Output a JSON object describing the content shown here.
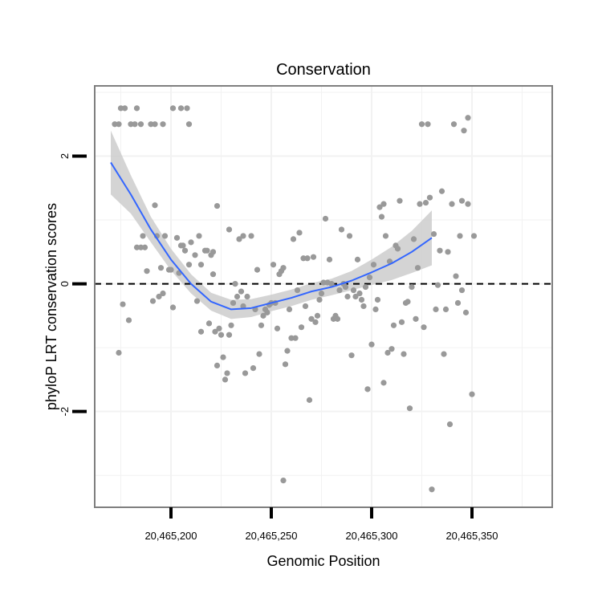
{
  "chart_data": {
    "type": "scatter",
    "title": "Conservation",
    "xlabel": "Genomic Position",
    "ylabel": "phyloP LRT conservation scores",
    "xlim": [
      20465162,
      20465390
    ],
    "ylim": [
      -3.5,
      3.1
    ],
    "x_ticks": [
      {
        "value": 20465200,
        "label": "20,465,200"
      },
      {
        "value": 20465250,
        "label": "20,465,250"
      },
      {
        "value": 20465300,
        "label": "20,465,300"
      },
      {
        "value": 20465350,
        "label": "20,465,350"
      }
    ],
    "y_ticks": [
      {
        "value": -2,
        "label": "-2"
      },
      {
        "value": 0,
        "label": "0"
      },
      {
        "value": 2,
        "label": "2"
      }
    ],
    "x_minor_gridlines": [
      20465175,
      20465225,
      20465275,
      20465325,
      20465375
    ],
    "y_minor_gridlines": [
      -3,
      -1,
      1,
      3
    ],
    "reference_line": {
      "y": 0,
      "style": "dashed"
    },
    "colors": {
      "points": "#999999",
      "smooth_line": "#3366ff",
      "ribbon": "#cccccc",
      "panel_border": "#7f7f7f",
      "grid": "#f2f2f2"
    },
    "series": [
      {
        "name": "phyloP scores",
        "points": [
          [
            20465172,
            2.5
          ],
          [
            20465174,
            2.5
          ],
          [
            20465175,
            2.75
          ],
          [
            20465177,
            2.75
          ],
          [
            20465180,
            2.5
          ],
          [
            20465182,
            2.5
          ],
          [
            20465183,
            2.75
          ],
          [
            20465185,
            2.5
          ],
          [
            20465190,
            2.5
          ],
          [
            20465192,
            2.5
          ],
          [
            20465196,
            2.5
          ],
          [
            20465201,
            2.75
          ],
          [
            20465205,
            2.75
          ],
          [
            20465208,
            2.75
          ],
          [
            20465209,
            2.5
          ],
          [
            20465174,
            -1.08
          ],
          [
            20465176,
            -0.32
          ],
          [
            20465179,
            -0.57
          ],
          [
            20465183,
            0.57
          ],
          [
            20465185,
            0.57
          ],
          [
            20465186,
            0.75
          ],
          [
            20465187,
            0.57
          ],
          [
            20465188,
            0.2
          ],
          [
            20465191,
            -0.27
          ],
          [
            20465192,
            1.23
          ],
          [
            20465193,
            0.75
          ],
          [
            20465194,
            -0.2
          ],
          [
            20465195,
            0.25
          ],
          [
            20465196,
            -0.15
          ],
          [
            20465197,
            0.75
          ],
          [
            20465199,
            0.22
          ],
          [
            20465200,
            0.22
          ],
          [
            20465201,
            -0.37
          ],
          [
            20465203,
            0.72
          ],
          [
            20465204,
            0.17
          ],
          [
            20465205,
            0.6
          ],
          [
            20465206,
            0.6
          ],
          [
            20465207,
            0.52
          ],
          [
            20465209,
            0.3
          ],
          [
            20465210,
            0.65
          ],
          [
            20465212,
            0.45
          ],
          [
            20465213,
            -0.27
          ],
          [
            20465214,
            0.75
          ],
          [
            20465215,
            -0.75
          ],
          [
            20465215,
            0.3
          ],
          [
            20465217,
            0.52
          ],
          [
            20465218,
            0.52
          ],
          [
            20465219,
            -0.62
          ],
          [
            20465220,
            0.45
          ],
          [
            20465221,
            0.15
          ],
          [
            20465221,
            0.5
          ],
          [
            20465222,
            -0.75
          ],
          [
            20465223,
            -1.28
          ],
          [
            20465223,
            1.22
          ],
          [
            20465224,
            -0.7
          ],
          [
            20465225,
            -0.8
          ],
          [
            20465226,
            -1.15
          ],
          [
            20465227,
            -1.5
          ],
          [
            20465228,
            -1.4
          ],
          [
            20465229,
            0.85
          ],
          [
            20465229,
            -0.8
          ],
          [
            20465230,
            -0.65
          ],
          [
            20465231,
            -0.3
          ],
          [
            20465232,
            0.0
          ],
          [
            20465233,
            -0.2
          ],
          [
            20465234,
            0.7
          ],
          [
            20465235,
            -0.12
          ],
          [
            20465236,
            0.75
          ],
          [
            20465236,
            -0.35
          ],
          [
            20465237,
            -1.4
          ],
          [
            20465238,
            -0.2
          ],
          [
            20465240,
            0.75
          ],
          [
            20465241,
            -1.32
          ],
          [
            20465242,
            -0.4
          ],
          [
            20465243,
            0.22
          ],
          [
            20465244,
            -1.1
          ],
          [
            20465245,
            -0.65
          ],
          [
            20465246,
            -0.5
          ],
          [
            20465247,
            -0.4
          ],
          [
            20465248,
            -0.45
          ],
          [
            20465249,
            -0.33
          ],
          [
            20465250,
            -0.3
          ],
          [
            20465251,
            0.3
          ],
          [
            20465252,
            -0.3
          ],
          [
            20465253,
            -0.7
          ],
          [
            20465254,
            0.15
          ],
          [
            20465255,
            0.2
          ],
          [
            20465256,
            0.25
          ],
          [
            20465256,
            -3.08
          ],
          [
            20465257,
            -1.26
          ],
          [
            20465258,
            -1.05
          ],
          [
            20465259,
            -0.4
          ],
          [
            20465260,
            -0.85
          ],
          [
            20465261,
            0.7
          ],
          [
            20465262,
            -0.85
          ],
          [
            20465263,
            -0.1
          ],
          [
            20465264,
            0.8
          ],
          [
            20465265,
            -0.68
          ],
          [
            20465266,
            0.4
          ],
          [
            20465267,
            -0.35
          ],
          [
            20465268,
            0.4
          ],
          [
            20465269,
            -1.82
          ],
          [
            20465270,
            -0.55
          ],
          [
            20465271,
            0.42
          ],
          [
            20465272,
            -0.6
          ],
          [
            20465273,
            -0.5
          ],
          [
            20465274,
            -0.25
          ],
          [
            20465275,
            -0.15
          ],
          [
            20465276,
            0.02
          ],
          [
            20465277,
            1.02
          ],
          [
            20465278,
            0.02
          ],
          [
            20465279,
            0.38
          ],
          [
            20465280,
            0.0
          ],
          [
            20465281,
            -0.55
          ],
          [
            20465282,
            -0.5
          ],
          [
            20465283,
            -0.55
          ],
          [
            20465284,
            -0.1
          ],
          [
            20465285,
            0.85
          ],
          [
            20465286,
            0.0
          ],
          [
            20465287,
            -0.05
          ],
          [
            20465288,
            -0.2
          ],
          [
            20465289,
            0.75
          ],
          [
            20465290,
            -1.12
          ],
          [
            20465291,
            -0.1
          ],
          [
            20465292,
            -0.2
          ],
          [
            20465293,
            0.38
          ],
          [
            20465294,
            -0.15
          ],
          [
            20465295,
            -0.25
          ],
          [
            20465296,
            -0.35
          ],
          [
            20465297,
            -0.05
          ],
          [
            20465298,
            -1.65
          ],
          [
            20465299,
            0.1
          ],
          [
            20465300,
            -0.95
          ],
          [
            20465301,
            0.3
          ],
          [
            20465302,
            -0.4
          ],
          [
            20465303,
            -0.25
          ],
          [
            20465304,
            1.2
          ],
          [
            20465305,
            1.05
          ],
          [
            20465306,
            1.25
          ],
          [
            20465306,
            -1.55
          ],
          [
            20465307,
            0.75
          ],
          [
            20465308,
            -1.08
          ],
          [
            20465309,
            0.35
          ],
          [
            20465310,
            -1.02
          ],
          [
            20465311,
            -0.65
          ],
          [
            20465312,
            0.6
          ],
          [
            20465313,
            0.55
          ],
          [
            20465314,
            1.3
          ],
          [
            20465315,
            -0.6
          ],
          [
            20465316,
            -1.1
          ],
          [
            20465317,
            -0.3
          ],
          [
            20465318,
            -0.28
          ],
          [
            20465319,
            -1.95
          ],
          [
            20465320,
            -0.05
          ],
          [
            20465321,
            0.7
          ],
          [
            20465322,
            -0.55
          ],
          [
            20465323,
            0.25
          ],
          [
            20465324,
            1.25
          ],
          [
            20465325,
            2.5
          ],
          [
            20465326,
            -0.68
          ],
          [
            20465327,
            1.27
          ],
          [
            20465328,
            2.5
          ],
          [
            20465329,
            1.35
          ],
          [
            20465330,
            -3.22
          ],
          [
            20465331,
            0.78
          ],
          [
            20465332,
            -0.4
          ],
          [
            20465333,
            -0.02
          ],
          [
            20465334,
            0.52
          ],
          [
            20465335,
            1.45
          ],
          [
            20465336,
            -1.1
          ],
          [
            20465337,
            -0.4
          ],
          [
            20465338,
            0.5
          ],
          [
            20465339,
            -2.2
          ],
          [
            20465340,
            1.25
          ],
          [
            20465341,
            2.5
          ],
          [
            20465342,
            0.12
          ],
          [
            20465343,
            -0.3
          ],
          [
            20465344,
            0.75
          ],
          [
            20465345,
            1.3
          ],
          [
            20465345,
            -0.1
          ],
          [
            20465346,
            2.4
          ],
          [
            20465347,
            -0.45
          ],
          [
            20465348,
            2.6
          ],
          [
            20465348,
            1.25
          ],
          [
            20465350,
            -1.73
          ],
          [
            20465351,
            0.75
          ]
        ]
      }
    ],
    "smooth": {
      "name": "loess fit",
      "points": [
        [
          20465170,
          1.9
        ],
        [
          20465180,
          1.4
        ],
        [
          20465190,
          0.85
        ],
        [
          20465200,
          0.38
        ],
        [
          20465210,
          0.0
        ],
        [
          20465220,
          -0.28
        ],
        [
          20465230,
          -0.4
        ],
        [
          20465240,
          -0.38
        ],
        [
          20465250,
          -0.3
        ],
        [
          20465260,
          -0.22
        ],
        [
          20465270,
          -0.12
        ],
        [
          20465280,
          -0.05
        ],
        [
          20465290,
          0.05
        ],
        [
          20465300,
          0.18
        ],
        [
          20465310,
          0.32
        ],
        [
          20465320,
          0.5
        ],
        [
          20465330,
          0.72
        ]
      ],
      "ci_upper": [
        2.4,
        1.7,
        1.05,
        0.55,
        0.15,
        -0.14,
        -0.25,
        -0.24,
        -0.17,
        -0.09,
        0.01,
        0.08,
        0.2,
        0.38,
        0.58,
        0.83,
        1.15
      ],
      "ci_lower": [
        1.4,
        1.1,
        0.65,
        0.21,
        -0.15,
        -0.42,
        -0.55,
        -0.52,
        -0.43,
        -0.35,
        -0.25,
        -0.18,
        -0.1,
        -0.02,
        0.06,
        0.17,
        0.29
      ]
    }
  }
}
